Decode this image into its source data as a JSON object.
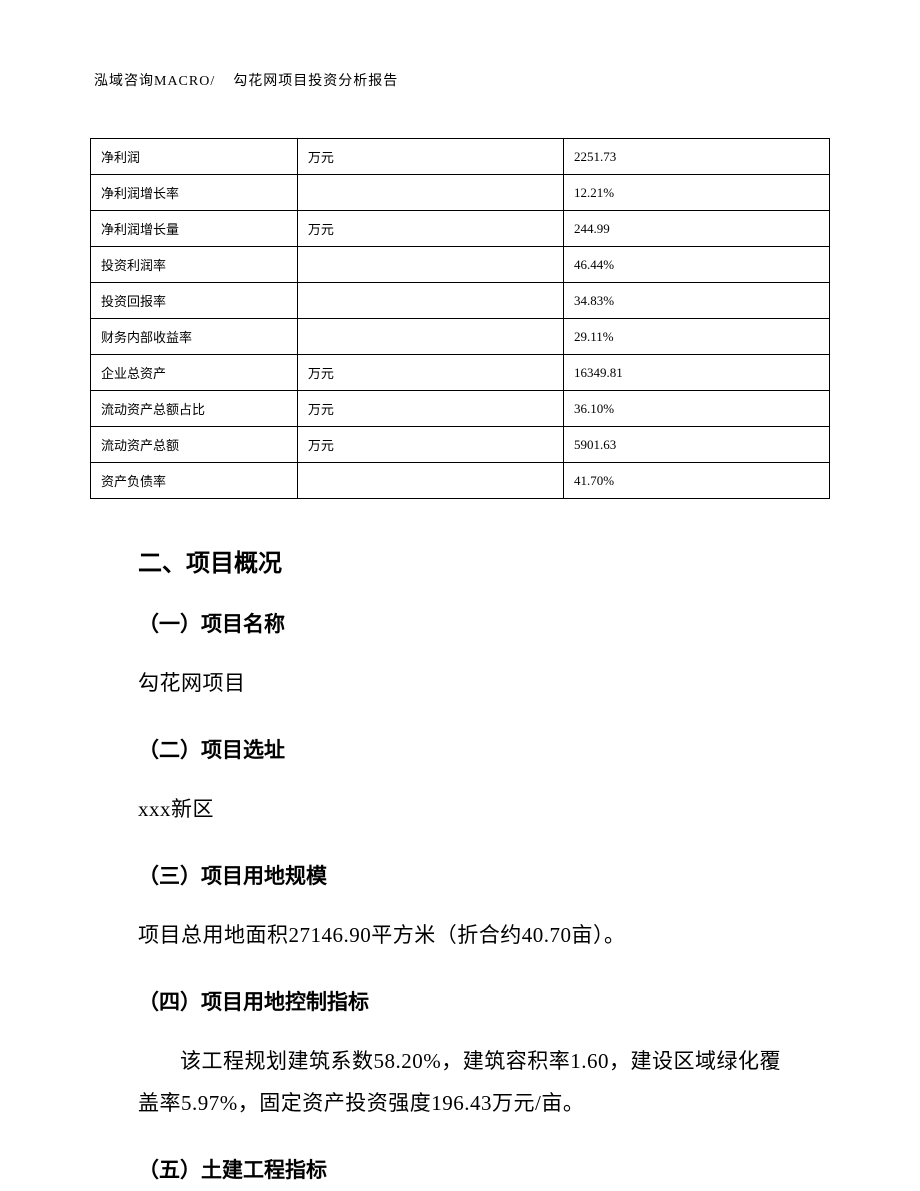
{
  "header": {
    "left": "泓域咨询MACRO/",
    "right": "勾花网项目投资分析报告"
  },
  "table": {
    "columns": [
      "label",
      "unit",
      "value"
    ],
    "column_widths": [
      "28%",
      "36%",
      "36%"
    ],
    "border_color": "#000000",
    "font_size": 13,
    "rows": [
      {
        "label": "净利润",
        "unit": "万元",
        "value": "2251.73"
      },
      {
        "label": "净利润增长率",
        "unit": "",
        "value": "12.21%"
      },
      {
        "label": "净利润增长量",
        "unit": "万元",
        "value": "244.99"
      },
      {
        "label": "投资利润率",
        "unit": "",
        "value": "46.44%"
      },
      {
        "label": "投资回报率",
        "unit": "",
        "value": "34.83%"
      },
      {
        "label": "财务内部收益率",
        "unit": "",
        "value": "29.11%"
      },
      {
        "label": "企业总资产",
        "unit": "万元",
        "value": "16349.81"
      },
      {
        "label": "流动资产总额占比",
        "unit": "万元",
        "value": "36.10%"
      },
      {
        "label": "流动资产总额",
        "unit": "万元",
        "value": "5901.63"
      },
      {
        "label": "资产负债率",
        "unit": "",
        "value": "41.70%"
      }
    ]
  },
  "section": {
    "title": "二、项目概况",
    "items": [
      {
        "heading": "（一）项目名称",
        "body": "勾花网项目"
      },
      {
        "heading": "（二）项目选址",
        "body": "xxx新区"
      },
      {
        "heading": "（三）项目用地规模",
        "body": "项目总用地面积27146.90平方米（折合约40.70亩）。"
      },
      {
        "heading": "（四）项目用地控制指标",
        "body": "该工程规划建筑系数58.20%，建筑容积率1.60，建设区域绿化覆盖率5.97%，固定资产投资强度196.43万元/亩。"
      },
      {
        "heading": "（五）土建工程指标",
        "body": ""
      }
    ]
  },
  "colors": {
    "background": "#ffffff",
    "text": "#000000",
    "border": "#000000"
  },
  "typography": {
    "body_font": "SimSun",
    "heading_font": "SimHei",
    "header_fontsize": 14,
    "table_fontsize": 13,
    "section_title_fontsize": 24,
    "subheading_fontsize": 21,
    "paragraph_fontsize": 21,
    "paragraph_lineheight": 2.0
  }
}
